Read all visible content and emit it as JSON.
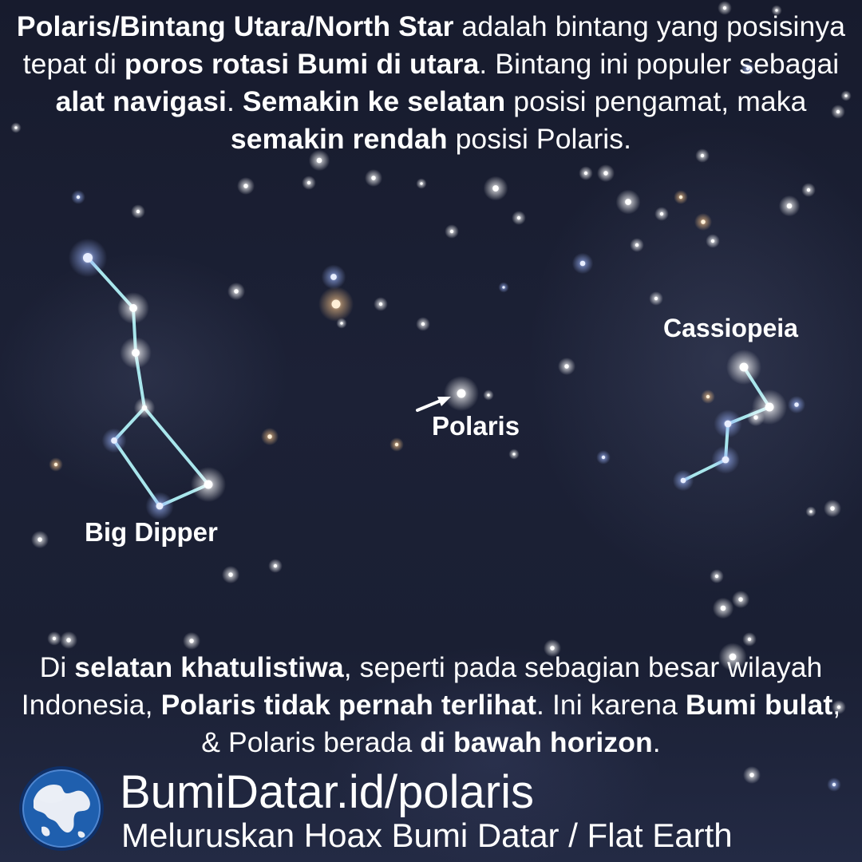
{
  "top_text": [
    {
      "t": "Polaris/Bintang Utara/North Star",
      "b": true
    },
    {
      "t": " adalah bintang yang posisinya tepat di ",
      "b": false
    },
    {
      "t": "poros rotasi Bumi di utara",
      "b": true
    },
    {
      "t": ". Bintang ini populer sebagai ",
      "b": false
    },
    {
      "t": "alat navigasi",
      "b": true
    },
    {
      "t": ". ",
      "b": false
    },
    {
      "t": "Semakin ke selatan",
      "b": true
    },
    {
      "t": " posisi pengamat, maka ",
      "b": false
    },
    {
      "t": "semakin rendah",
      "b": true
    },
    {
      "t": " posisi Polaris.",
      "b": false
    }
  ],
  "labels": {
    "big_dipper": "Big Dipper",
    "polaris": "Polaris",
    "cassiopeia": "Cassiopeia"
  },
  "bottom_text": [
    {
      "t": "Di ",
      "b": false
    },
    {
      "t": "selatan khatulistiwa",
      "b": true
    },
    {
      "t": ", seperti pada sebagian besar wilayah Indonesia, ",
      "b": false
    },
    {
      "t": "Polaris tidak pernah terlihat",
      "b": true
    },
    {
      "t": ". Ini karena ",
      "b": false
    },
    {
      "t": "Bumi bulat",
      "b": true
    },
    {
      "t": ", & Polaris berada ",
      "b": false
    },
    {
      "t": "di bawah horizon",
      "b": true
    },
    {
      "t": ".",
      "b": false
    }
  ],
  "footer": {
    "url": "BumiDatar.id/polaris",
    "tagline": "Meluruskan Hoax Bumi Datar / Flat Earth"
  },
  "colors": {
    "sky_dark": "#171b2d",
    "constellation_line": "#a8e6ec",
    "star_white": "#ffffff",
    "star_blue": "#bcd0ff",
    "star_warm": "#ffd9a8",
    "globe_ocean": "#1f5fae",
    "globe_land": "#e9edf5"
  }
}
